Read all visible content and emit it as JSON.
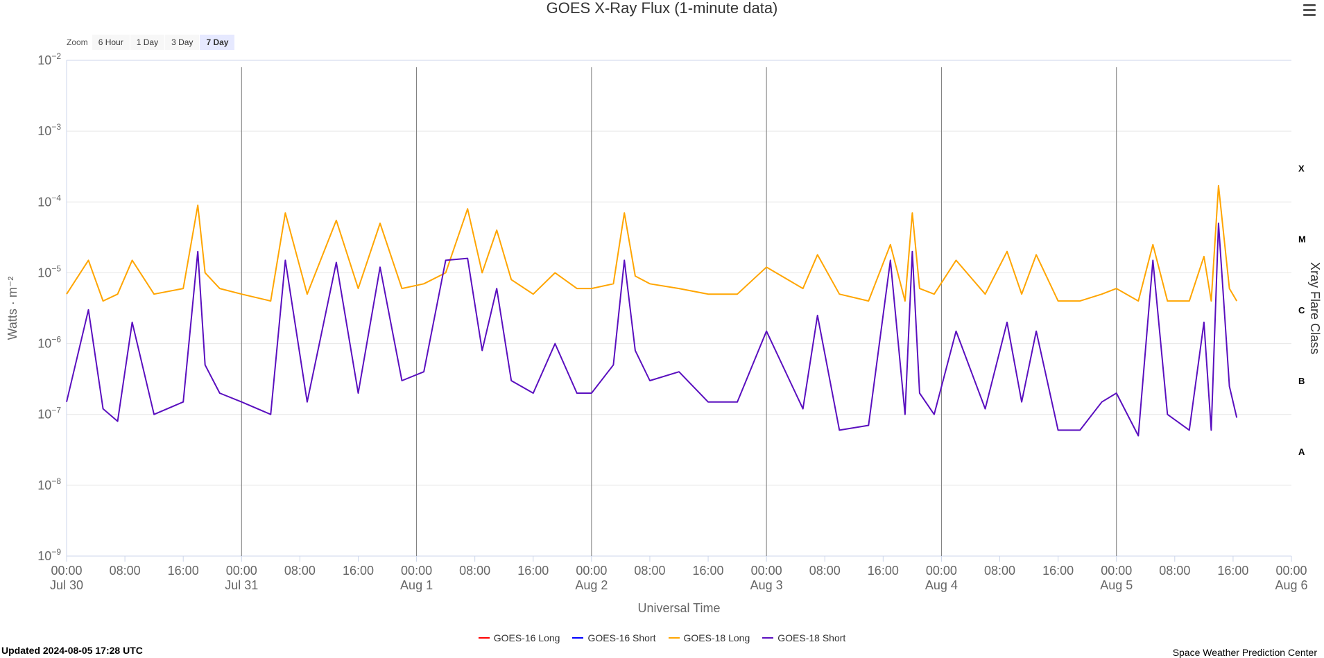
{
  "header": {
    "title": "GOES X-Ray Flux (1-minute data)"
  },
  "zoom": {
    "label": "Zoom",
    "buttons": [
      "6 Hour",
      "1 Day",
      "3 Day",
      "7 Day"
    ],
    "active": "7 Day"
  },
  "footer": {
    "updated": "Updated 2024-08-05 17:28 UTC",
    "credit": "Space Weather Prediction Center"
  },
  "colors": {
    "goes16_long": "#ff0000",
    "goes16_short": "#0000ff",
    "goes18_long": "#ffa500",
    "goes18_short": "#5a0fbf",
    "grid": "#e6e6e6",
    "day_line": "#7a7a7a"
  },
  "chart_data": {
    "type": "line",
    "title": "GOES X-Ray Flux (1-minute data)",
    "xlabel": "Universal Time",
    "ylabel": "Watts · m⁻²",
    "y2label": "Xray Flare Class",
    "y_scale": "log",
    "ylim": [
      1e-09,
      0.01
    ],
    "y_ticks": [
      {
        "value": 0.01,
        "base": "10",
        "exp": "−2"
      },
      {
        "value": 0.001,
        "base": "10",
        "exp": "−3"
      },
      {
        "value": 0.0001,
        "base": "10",
        "exp": "−4"
      },
      {
        "value": 1e-05,
        "base": "10",
        "exp": "−5"
      },
      {
        "value": 1e-06,
        "base": "10",
        "exp": "−6"
      },
      {
        "value": 1e-07,
        "base": "10",
        "exp": "−7"
      },
      {
        "value": 1e-08,
        "base": "10",
        "exp": "−8"
      },
      {
        "value": 1e-09,
        "base": "10",
        "exp": "−9"
      }
    ],
    "flare_classes": [
      {
        "label": "X",
        "value": 0.0003
      },
      {
        "label": "M",
        "value": 3e-05
      },
      {
        "label": "C",
        "value": 3e-06
      },
      {
        "label": "B",
        "value": 3e-07
      },
      {
        "label": "A",
        "value": 3e-08
      }
    ],
    "xlim": [
      "2024-07-30 00:00",
      "2024-08-06 00:00"
    ],
    "x_ticks": [
      {
        "time": "2024-07-30 00:00",
        "label": "00:00",
        "date": "Jul 30"
      },
      {
        "time": "2024-07-30 08:00",
        "label": "08:00",
        "date": ""
      },
      {
        "time": "2024-07-30 16:00",
        "label": "16:00",
        "date": ""
      },
      {
        "time": "2024-07-31 00:00",
        "label": "00:00",
        "date": "Jul 31"
      },
      {
        "time": "2024-07-31 08:00",
        "label": "08:00",
        "date": ""
      },
      {
        "time": "2024-07-31 16:00",
        "label": "16:00",
        "date": ""
      },
      {
        "time": "2024-08-01 00:00",
        "label": "00:00",
        "date": "Aug 1"
      },
      {
        "time": "2024-08-01 08:00",
        "label": "08:00",
        "date": ""
      },
      {
        "time": "2024-08-01 16:00",
        "label": "16:00",
        "date": ""
      },
      {
        "time": "2024-08-02 00:00",
        "label": "00:00",
        "date": "Aug 2"
      },
      {
        "time": "2024-08-02 08:00",
        "label": "08:00",
        "date": ""
      },
      {
        "time": "2024-08-02 16:00",
        "label": "16:00",
        "date": ""
      },
      {
        "time": "2024-08-03 00:00",
        "label": "00:00",
        "date": "Aug 3"
      },
      {
        "time": "2024-08-03 08:00",
        "label": "08:00",
        "date": ""
      },
      {
        "time": "2024-08-03 16:00",
        "label": "16:00",
        "date": ""
      },
      {
        "time": "2024-08-04 00:00",
        "label": "00:00",
        "date": "Aug 4"
      },
      {
        "time": "2024-08-04 08:00",
        "label": "08:00",
        "date": ""
      },
      {
        "time": "2024-08-04 16:00",
        "label": "16:00",
        "date": ""
      },
      {
        "time": "2024-08-05 00:00",
        "label": "00:00",
        "date": "Aug 5"
      },
      {
        "time": "2024-08-05 08:00",
        "label": "08:00",
        "date": ""
      },
      {
        "time": "2024-08-05 16:00",
        "label": "16:00",
        "date": ""
      },
      {
        "time": "2024-08-06 00:00",
        "label": "00:00",
        "date": "Aug 6"
      }
    ],
    "day_lines": [
      "2024-07-31 00:00",
      "2024-08-01 00:00",
      "2024-08-02 00:00",
      "2024-08-03 00:00",
      "2024-08-04 00:00",
      "2024-08-05 00:00"
    ],
    "grid": true,
    "legend_position": "bottom",
    "series": [
      {
        "name": "GOES-16 Long",
        "color": "#ff0000",
        "x": [],
        "y": []
      },
      {
        "name": "GOES-16 Short",
        "color": "#0000ff",
        "x": [],
        "y": []
      },
      {
        "name": "GOES-18 Long",
        "color": "#ffa500",
        "x": [
          "2024-07-30 00:00",
          "2024-07-30 03:00",
          "2024-07-30 05:00",
          "2024-07-30 07:00",
          "2024-07-30 09:00",
          "2024-07-30 12:00",
          "2024-07-30 16:00",
          "2024-07-30 18:00",
          "2024-07-30 19:00",
          "2024-07-30 21:00",
          "2024-07-31 00:00",
          "2024-07-31 04:00",
          "2024-07-31 06:00",
          "2024-07-31 09:00",
          "2024-07-31 13:00",
          "2024-07-31 16:00",
          "2024-07-31 19:00",
          "2024-07-31 22:00",
          "2024-08-01 01:00",
          "2024-08-01 04:00",
          "2024-08-01 07:00",
          "2024-08-01 09:00",
          "2024-08-01 11:00",
          "2024-08-01 13:00",
          "2024-08-01 16:00",
          "2024-08-01 19:00",
          "2024-08-01 22:00",
          "2024-08-02 00:00",
          "2024-08-02 03:00",
          "2024-08-02 04:30",
          "2024-08-02 06:00",
          "2024-08-02 08:00",
          "2024-08-02 12:00",
          "2024-08-02 16:00",
          "2024-08-02 20:00",
          "2024-08-03 00:00",
          "2024-08-03 05:00",
          "2024-08-03 07:00",
          "2024-08-03 10:00",
          "2024-08-03 14:00",
          "2024-08-03 17:00",
          "2024-08-03 19:00",
          "2024-08-03 20:00",
          "2024-08-03 21:00",
          "2024-08-03 23:00",
          "2024-08-04 02:00",
          "2024-08-04 06:00",
          "2024-08-04 09:00",
          "2024-08-04 11:00",
          "2024-08-04 13:00",
          "2024-08-04 16:00",
          "2024-08-04 19:00",
          "2024-08-04 22:00",
          "2024-08-05 00:00",
          "2024-08-05 03:00",
          "2024-08-05 05:00",
          "2024-08-05 07:00",
          "2024-08-05 10:00",
          "2024-08-05 12:00",
          "2024-08-05 13:00",
          "2024-08-05 14:00",
          "2024-08-05 15:30",
          "2024-08-05 16:30"
        ],
        "y": [
          5e-06,
          1.5e-05,
          4e-06,
          5e-06,
          1.5e-05,
          5e-06,
          6e-06,
          9e-05,
          1e-05,
          6e-06,
          5e-06,
          4e-06,
          7e-05,
          5e-06,
          5.5e-05,
          6e-06,
          5e-05,
          6e-06,
          7e-06,
          1e-05,
          8e-05,
          1e-05,
          4e-05,
          8e-06,
          5e-06,
          1e-05,
          6e-06,
          6e-06,
          7e-06,
          7e-05,
          9e-06,
          7e-06,
          6e-06,
          5e-06,
          5e-06,
          1.2e-05,
          6e-06,
          1.8e-05,
          5e-06,
          4e-06,
          2.5e-05,
          4e-06,
          7e-05,
          6e-06,
          5e-06,
          1.5e-05,
          5e-06,
          2e-05,
          5e-06,
          1.8e-05,
          4e-06,
          4e-06,
          5e-06,
          6e-06,
          4e-06,
          2.5e-05,
          4e-06,
          4e-06,
          1.7e-05,
          4e-06,
          0.00017,
          6e-06,
          4e-06
        ]
      },
      {
        "name": "GOES-18 Short",
        "color": "#5a0fbf",
        "x": [
          "2024-07-30 00:00",
          "2024-07-30 03:00",
          "2024-07-30 05:00",
          "2024-07-30 07:00",
          "2024-07-30 09:00",
          "2024-07-30 12:00",
          "2024-07-30 16:00",
          "2024-07-30 18:00",
          "2024-07-30 19:00",
          "2024-07-30 21:00",
          "2024-07-31 00:00",
          "2024-07-31 04:00",
          "2024-07-31 06:00",
          "2024-07-31 09:00",
          "2024-07-31 13:00",
          "2024-07-31 16:00",
          "2024-07-31 19:00",
          "2024-07-31 22:00",
          "2024-08-01 01:00",
          "2024-08-01 04:00",
          "2024-08-01 07:00",
          "2024-08-01 09:00",
          "2024-08-01 11:00",
          "2024-08-01 13:00",
          "2024-08-01 16:00",
          "2024-08-01 19:00",
          "2024-08-01 22:00",
          "2024-08-02 00:00",
          "2024-08-02 03:00",
          "2024-08-02 04:30",
          "2024-08-02 06:00",
          "2024-08-02 08:00",
          "2024-08-02 12:00",
          "2024-08-02 16:00",
          "2024-08-02 20:00",
          "2024-08-03 00:00",
          "2024-08-03 05:00",
          "2024-08-03 07:00",
          "2024-08-03 10:00",
          "2024-08-03 14:00",
          "2024-08-03 17:00",
          "2024-08-03 19:00",
          "2024-08-03 20:00",
          "2024-08-03 21:00",
          "2024-08-03 23:00",
          "2024-08-04 02:00",
          "2024-08-04 06:00",
          "2024-08-04 09:00",
          "2024-08-04 11:00",
          "2024-08-04 13:00",
          "2024-08-04 16:00",
          "2024-08-04 19:00",
          "2024-08-04 22:00",
          "2024-08-05 00:00",
          "2024-08-05 03:00",
          "2024-08-05 05:00",
          "2024-08-05 07:00",
          "2024-08-05 10:00",
          "2024-08-05 12:00",
          "2024-08-05 13:00",
          "2024-08-05 14:00",
          "2024-08-05 15:30",
          "2024-08-05 16:30"
        ],
        "y": [
          1.5e-07,
          3e-06,
          1.2e-07,
          8e-08,
          2e-06,
          1e-07,
          1.5e-07,
          2e-05,
          5e-07,
          2e-07,
          1.5e-07,
          1e-07,
          1.5e-05,
          1.5e-07,
          1.4e-05,
          2e-07,
          1.2e-05,
          3e-07,
          4e-07,
          1.5e-05,
          1.6e-05,
          8e-07,
          6e-06,
          3e-07,
          2e-07,
          1e-06,
          2e-07,
          2e-07,
          5e-07,
          1.5e-05,
          8e-07,
          3e-07,
          4e-07,
          1.5e-07,
          1.5e-07,
          1.5e-06,
          1.2e-07,
          2.5e-06,
          6e-08,
          7e-08,
          1.5e-05,
          1e-07,
          2e-05,
          2e-07,
          1e-07,
          1.5e-06,
          1.2e-07,
          2e-06,
          1.5e-07,
          1.5e-06,
          6e-08,
          6e-08,
          1.5e-07,
          2e-07,
          5e-08,
          1.5e-05,
          1e-07,
          6e-08,
          2e-06,
          6e-08,
          5e-05,
          2.5e-07,
          9e-08
        ]
      }
    ]
  }
}
